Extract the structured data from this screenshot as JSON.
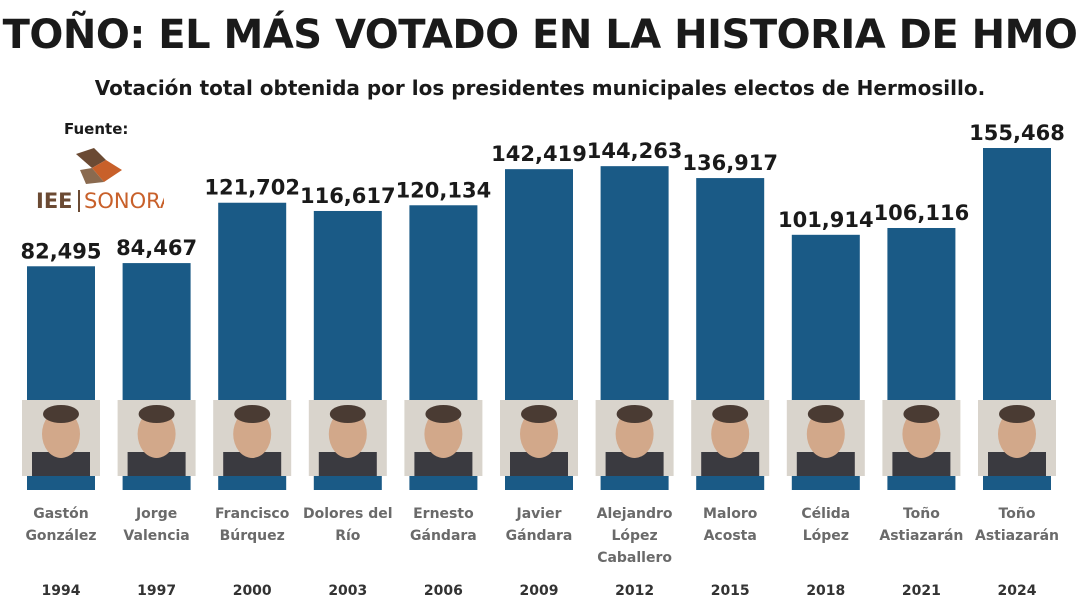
{
  "header": {
    "title": "TOÑO: EL MÁS VOTADO EN LA HISTORIA DE HMO",
    "subtitle": "Votación total obtenida por los presidentes municipales electos de Hermosillo.",
    "source_label": "Fuente:",
    "source_logo_text_left": "IEE",
    "source_logo_text_right": "SONORA"
  },
  "colors": {
    "bar": "#1a5a86",
    "logo_orange": "#c8602a",
    "logo_brown": "#6b4a33"
  },
  "chart_data": {
    "type": "bar",
    "title": "TOÑO: EL MÁS VOTADO EN LA HISTORIA DE HMO",
    "subtitle": "Votación total obtenida por los presidentes municipales electos de Hermosillo.",
    "categories": [
      "1994",
      "1997",
      "2000",
      "2003",
      "2006",
      "2009",
      "2012",
      "2015",
      "2018",
      "2021",
      "2024"
    ],
    "values": [
      82495,
      84467,
      121702,
      116617,
      120134,
      142419,
      144263,
      136917,
      101914,
      106116,
      155468
    ],
    "value_labels": [
      "82,495",
      "84,467",
      "121,702",
      "116,617",
      "120,134",
      "142,419",
      "144,263",
      "136,917",
      "101,914",
      "106,116",
      "155,468"
    ],
    "names": [
      [
        "Gastón",
        "González"
      ],
      [
        "Jorge",
        "Valencia"
      ],
      [
        "Francisco",
        "Búrquez"
      ],
      [
        "Dolores del",
        "Río"
      ],
      [
        "Ernesto",
        "Gándara"
      ],
      [
        "Javier",
        "Gándara"
      ],
      [
        "Alejandro",
        "López",
        "Caballero"
      ],
      [
        "Maloro",
        "Acosta"
      ],
      [
        "Célida",
        "López"
      ],
      [
        "Toño",
        "Astiazarán"
      ],
      [
        "Toño",
        "Astiazarán"
      ]
    ],
    "photo_icons": [
      "person-photo-icon",
      "person-photo-icon",
      "person-photo-icon",
      "person-photo-icon",
      "person-photo-icon",
      "person-photo-icon",
      "person-photo-icon",
      "person-photo-icon",
      "person-photo-icon",
      "person-photo-icon",
      "person-photo-icon"
    ],
    "grid": false,
    "legend": "none"
  }
}
